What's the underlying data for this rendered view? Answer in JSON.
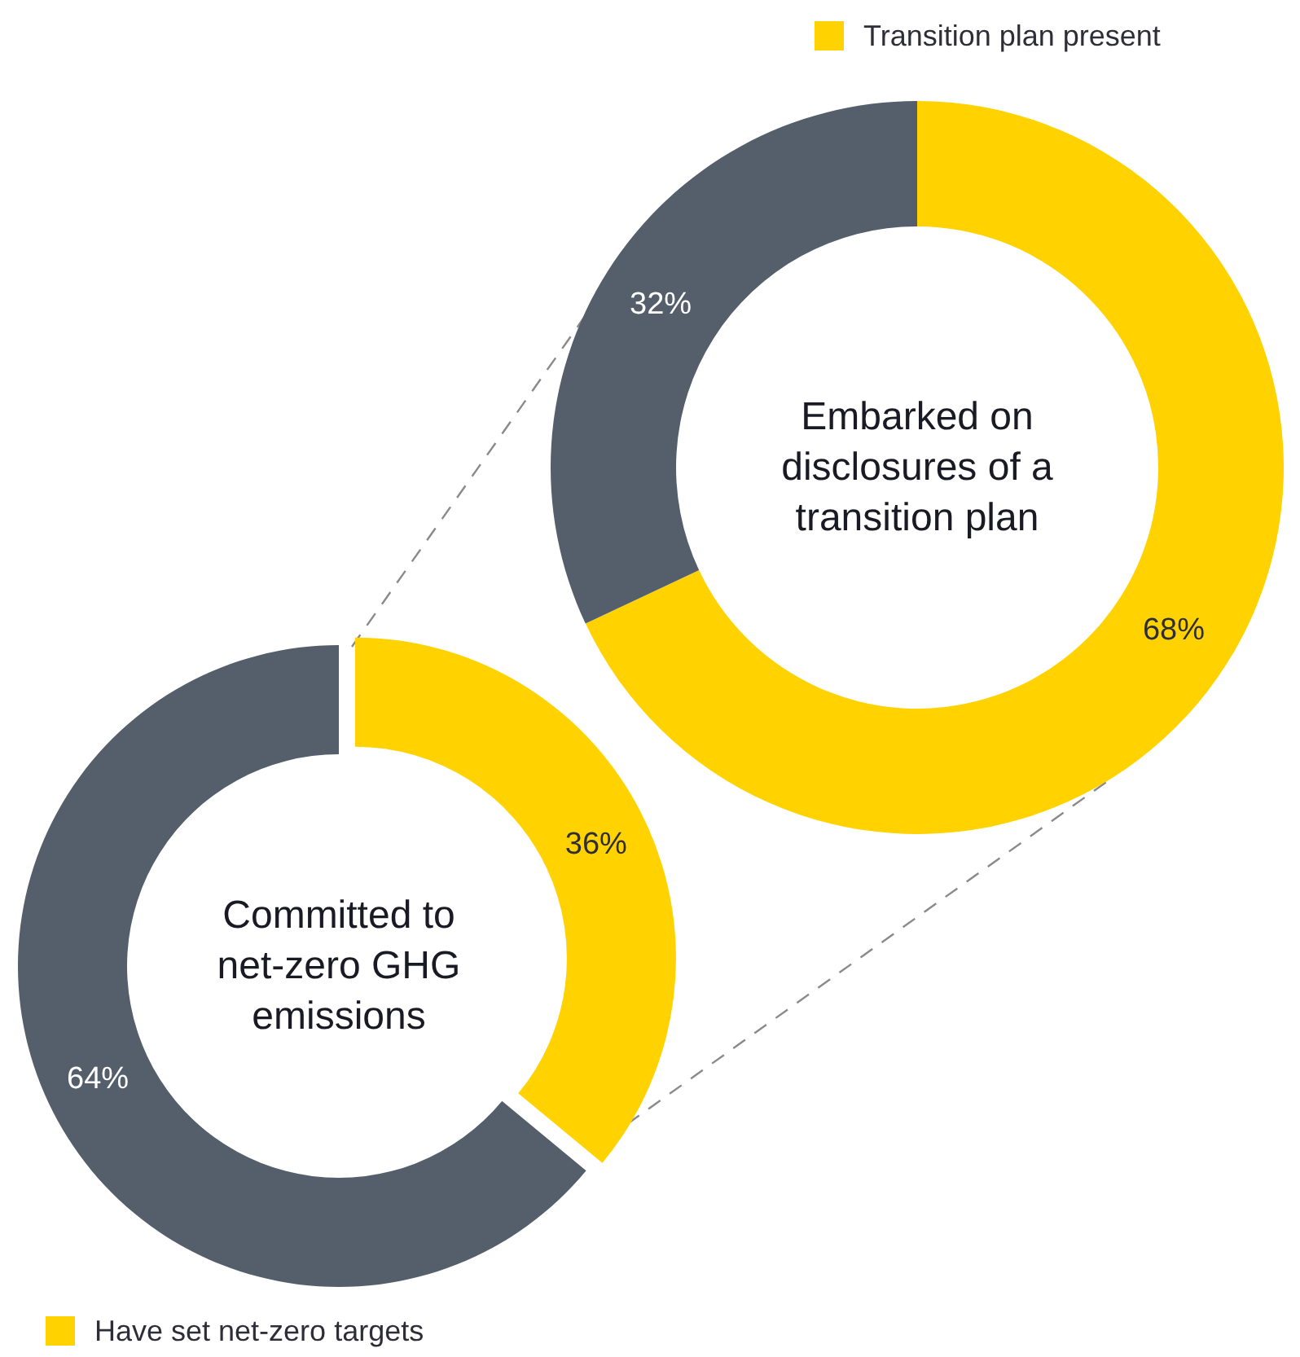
{
  "chart_data": [
    {
      "type": "donut",
      "title": "Embarked on disclosures of a transition plan",
      "categories": [
        "Transition plan present",
        null
      ],
      "values": [
        68,
        32
      ],
      "value_labels": [
        "68%",
        "32%"
      ],
      "colors": [
        "#ffd200",
        "#545f6b"
      ],
      "legend": "top"
    },
    {
      "type": "donut",
      "title": "Committed to net-zero GHG emissions",
      "categories": [
        "Have set net-zero targets",
        null
      ],
      "values": [
        36,
        64
      ],
      "value_labels": [
        "36%",
        "64%"
      ],
      "colors": [
        "#ffd200",
        "#545f6b"
      ],
      "legend": "bottom left"
    }
  ]
}
